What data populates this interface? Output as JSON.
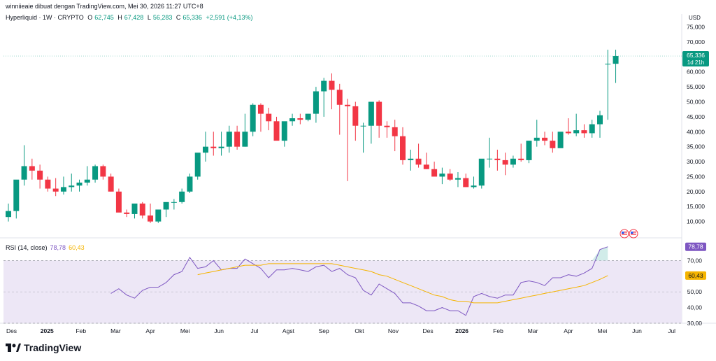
{
  "header": {
    "attribution": "winniieaie dibuat dengan TradingView.com, Mei 30, 2026 11:27 UTC+8",
    "symbol": "Hyperliquid · 1W · CRYPTO",
    "open_label": "O",
    "open": "62,745",
    "high_label": "H",
    "high": "67,428",
    "low_label": "L",
    "low": "56,283",
    "close_label": "C",
    "close": "65,336",
    "change": "+2,591 (+4,13%)"
  },
  "price_axis": {
    "currency": "USD",
    "ticks": [
      "75,000",
      "70,000",
      "65,000",
      "60,000",
      "55,000",
      "50,000",
      "45,000",
      "40,000",
      "35,000",
      "30,000",
      "25,000",
      "20,000",
      "15,000",
      "10,000"
    ],
    "last_price": "65,336",
    "countdown": "1d 21h"
  },
  "rsi": {
    "label": "RSI (14, close)",
    "rsi_value": "78,78",
    "ma_value": "60,43",
    "ticks": [
      "70,00",
      "60,00",
      "50,00",
      "40,00",
      "30,00"
    ]
  },
  "time_axis": [
    "Des",
    "2025",
    "Feb",
    "Mar",
    "Apr",
    "Mei",
    "Jun",
    "Jul",
    "Agst",
    "Sep",
    "Okt",
    "Nov",
    "Des",
    "2026",
    "Feb",
    "Mar",
    "Apr",
    "Mei",
    "Jun",
    "Jul"
  ],
  "brand": "TradingView",
  "colors": {
    "up": "#089981",
    "down": "#f23645",
    "rsi": "#7e57c2",
    "rsi_ma": "#f5b400",
    "band": "#ede7f6"
  },
  "chart_data": [
    {
      "type": "candlestick",
      "title": "Hyperliquid · 1W · CRYPTO",
      "ylabel": "USD",
      "ylim": [
        5000,
        77000
      ],
      "x": [
        "2024-12-02",
        "2024-12-09",
        "2024-12-16",
        "2024-12-23",
        "2024-12-30",
        "2025-01-06",
        "2025-01-13",
        "2025-01-20",
        "2025-01-27",
        "2025-02-03",
        "2025-02-10",
        "2025-02-17",
        "2025-02-24",
        "2025-03-03",
        "2025-03-10",
        "2025-03-17",
        "2025-03-24",
        "2025-03-31",
        "2025-04-07",
        "2025-04-14",
        "2025-04-21",
        "2025-04-28",
        "2025-05-05",
        "2025-05-12",
        "2025-05-19",
        "2025-05-26",
        "2025-06-02",
        "2025-06-09",
        "2025-06-16",
        "2025-06-23",
        "2025-06-30",
        "2025-07-07",
        "2025-07-14",
        "2025-07-21",
        "2025-07-28",
        "2025-08-04",
        "2025-08-11",
        "2025-08-18",
        "2025-08-25",
        "2025-09-01",
        "2025-09-08",
        "2025-09-15",
        "2025-09-22",
        "2025-09-29",
        "2025-10-06",
        "2025-10-13",
        "2025-10-20",
        "2025-10-27",
        "2025-11-03",
        "2025-11-10",
        "2025-11-17",
        "2025-11-24",
        "2025-12-01",
        "2025-12-08",
        "2025-12-15",
        "2025-12-22",
        "2025-12-29",
        "2026-01-05",
        "2026-01-12",
        "2026-01-19",
        "2026-01-26",
        "2026-02-02",
        "2026-02-09",
        "2026-02-16",
        "2026-02-23",
        "2026-03-02",
        "2026-03-09",
        "2026-03-16",
        "2026-03-23",
        "2026-03-30",
        "2026-04-06",
        "2026-04-13",
        "2026-04-20",
        "2026-04-27",
        "2026-05-04",
        "2026-05-11",
        "2026-05-18",
        "2026-05-25"
      ],
      "open": [
        11.5,
        13.5,
        24,
        28.5,
        27,
        24,
        21,
        20,
        21.5,
        22,
        23,
        24,
        28.5,
        25,
        20,
        13,
        12.5,
        16,
        12,
        10,
        14,
        16.5,
        16.5,
        20,
        25,
        33,
        35,
        34.5,
        35,
        40,
        35,
        40,
        49,
        46,
        43.5,
        37,
        43.5,
        44.5,
        44,
        46,
        53.5,
        57,
        54,
        49,
        48.5,
        42,
        42,
        50,
        42,
        41.5,
        38.5,
        30.5,
        31,
        29,
        27.5,
        25,
        26,
        24,
        24.5,
        21.5,
        22,
        31,
        31,
        30.5,
        29,
        31,
        30.5,
        37,
        38,
        37,
        34.5,
        40,
        39.5,
        40.5,
        39.5,
        42.5,
        62.7,
        62.7
      ],
      "high": [
        16,
        22,
        35.5,
        31,
        29,
        25,
        24.5,
        25,
        26,
        24,
        28.5,
        29,
        29,
        26,
        21,
        14,
        13.5,
        16.5,
        16,
        13,
        15,
        17.5,
        21,
        26,
        30,
        40,
        40,
        40,
        42,
        42,
        46,
        49.5,
        49.5,
        48,
        45,
        40,
        46,
        46,
        46,
        55,
        58,
        59.5,
        56,
        51,
        50,
        43,
        43,
        50.5,
        43.5,
        44,
        41.5,
        34,
        36,
        33,
        30,
        28,
        27.5,
        26.5,
        26,
        25,
        30,
        38,
        34,
        33,
        32,
        36,
        37,
        44,
        40,
        40,
        38,
        44.5,
        46,
        42.5,
        44,
        47,
        67.4,
        67.4
      ],
      "low": [
        10,
        11,
        22,
        24,
        21,
        20,
        18.5,
        19,
        20,
        20,
        22,
        23,
        24,
        20,
        15,
        11.5,
        11,
        11,
        9.5,
        9.5,
        11.5,
        14,
        16,
        19.5,
        24,
        30,
        32,
        32,
        33,
        34,
        35,
        38.5,
        40,
        40.5,
        43,
        35,
        42,
        42.5,
        43.5,
        43,
        45,
        47.5,
        39,
        23.5,
        37,
        33,
        36,
        38,
        38,
        33.5,
        29,
        27,
        28,
        27.5,
        25.5,
        22.5,
        23.5,
        21.5,
        21.5,
        21,
        21,
        28,
        27,
        25.5,
        28,
        30,
        29.5,
        35,
        35.5,
        33,
        35.5,
        39,
        38.5,
        38,
        38,
        38,
        44,
        56.3
      ],
      "close": [
        13.5,
        24,
        28.5,
        27,
        24,
        21,
        20,
        21.5,
        22,
        23,
        24,
        28.5,
        25,
        20,
        13,
        12.5,
        16,
        12,
        10,
        14,
        16.5,
        16.5,
        20,
        25,
        33,
        35,
        34.5,
        35,
        40,
        35,
        40,
        49,
        46,
        43.5,
        37,
        43.5,
        44.5,
        44,
        46,
        53.5,
        57,
        54,
        49,
        48.5,
        42,
        42,
        50,
        42,
        41.5,
        38.5,
        30.5,
        31,
        29,
        27.5,
        25,
        26,
        24,
        24.5,
        21.5,
        22,
        31,
        31,
        30.5,
        29,
        31,
        30.5,
        37,
        38,
        37,
        34.5,
        40,
        39.5,
        40.5,
        39.5,
        42.5,
        45.5,
        62.7,
        65.3
      ],
      "unit": "thousands USD"
    },
    {
      "type": "line",
      "title": "RSI (14, close)",
      "ylim": [
        30,
        80
      ],
      "series": [
        {
          "name": "RSI",
          "start_index": 13,
          "values": [
            49,
            52,
            48,
            46,
            51,
            53,
            53,
            56,
            61,
            63,
            72,
            65,
            66,
            70,
            64,
            65,
            65,
            71,
            68,
            65,
            59,
            64,
            64,
            65,
            64,
            63,
            66,
            67,
            63,
            65,
            61,
            59,
            51,
            48,
            55,
            52,
            49,
            43,
            43,
            41,
            38,
            38,
            40,
            38,
            38,
            35,
            47,
            49,
            47,
            46,
            48,
            48,
            56,
            57,
            56,
            54,
            59,
            59,
            61,
            60,
            62,
            65,
            77,
            78.8
          ]
        },
        {
          "name": "MA",
          "start_index": 24,
          "values": [
            61,
            62,
            63,
            64,
            65,
            66,
            67,
            67,
            67,
            68,
            68,
            68,
            68,
            68,
            68,
            68,
            68,
            68,
            67,
            66,
            65,
            64,
            63,
            61,
            60,
            58,
            56,
            54,
            52,
            50,
            48,
            47,
            45,
            44,
            44,
            43,
            43,
            43,
            43,
            44,
            45,
            46,
            47,
            48,
            49,
            50,
            51,
            52,
            53,
            54,
            56,
            58,
            60.4
          ]
        }
      ]
    }
  ]
}
